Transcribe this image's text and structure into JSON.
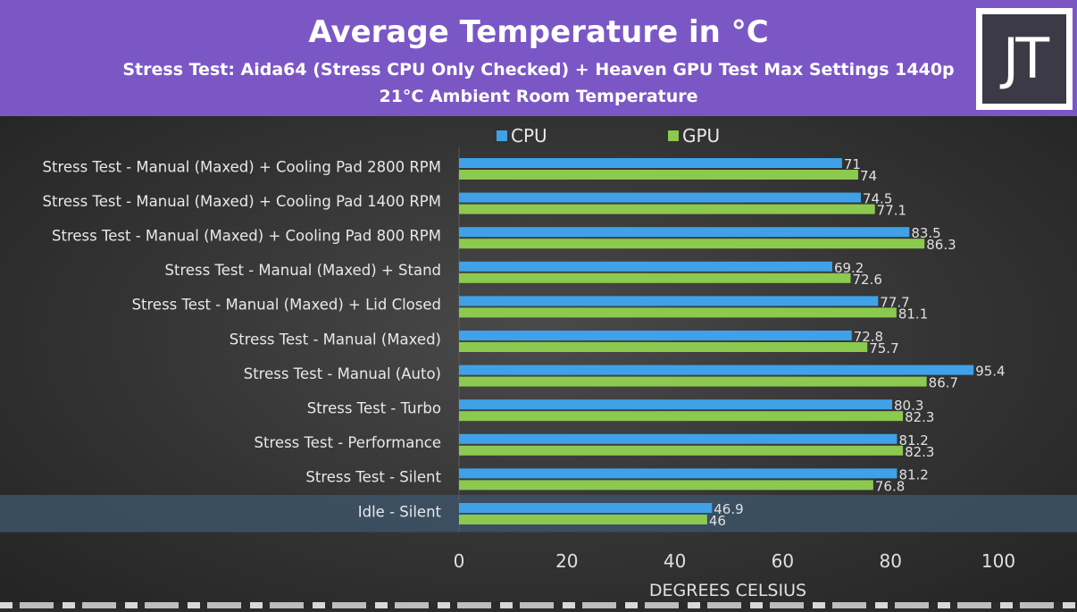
{
  "header": {
    "title": "Average Temperature in °C",
    "subtitle_line1": "Stress Test: Aida64 (Stress CPU Only Checked) + Heaven GPU Test Max Settings 1440p",
    "subtitle_line2": "21°C Ambient Room Temperature",
    "logo_text": "JT"
  },
  "colors": {
    "header_bg": "#7b57c6",
    "cpu": "#3fa2e8",
    "gpu": "#8cc94f",
    "highlight_row": "#3c5468"
  },
  "chart_data": {
    "type": "bar",
    "orientation": "horizontal",
    "categories": [
      "Stress Test - Manual (Maxed) + Cooling Pad 2800 RPM",
      "Stress Test - Manual (Maxed) + Cooling Pad 1400 RPM",
      "Stress Test - Manual (Maxed) + Cooling Pad 800 RPM",
      "Stress Test - Manual (Maxed) + Stand",
      "Stress Test - Manual (Maxed) + Lid Closed",
      "Stress Test - Manual (Maxed)",
      "Stress Test - Manual (Auto)",
      "Stress Test - Turbo",
      "Stress Test - Performance",
      "Stress Test - Silent",
      "Idle - Silent"
    ],
    "series": [
      {
        "name": "CPU",
        "color": "#3fa2e8",
        "values": [
          71,
          74.5,
          83.5,
          69.2,
          77.7,
          72.8,
          95.4,
          80.3,
          81.2,
          81.2,
          46.9
        ]
      },
      {
        "name": "GPU",
        "color": "#8cc94f",
        "values": [
          74,
          77.1,
          86.3,
          72.6,
          81.1,
          75.7,
          86.7,
          82.3,
          82.3,
          76.8,
          46
        ]
      }
    ],
    "xlabel": "DEGREES CELSIUS",
    "xlim": [
      0,
      100
    ],
    "xticks": [
      0,
      20,
      40,
      60,
      80,
      100
    ],
    "legend_position": "top",
    "highlighted_category": "Idle - Silent"
  }
}
